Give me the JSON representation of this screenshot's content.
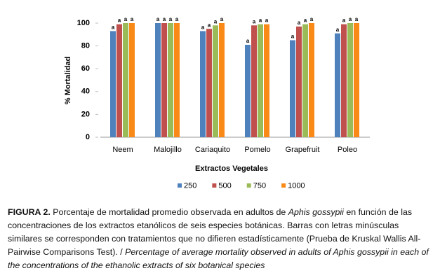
{
  "chart_data": {
    "type": "bar",
    "y_label": "% Mortalidad",
    "x_label": "Extractos Vegetales",
    "categories": [
      "Neem",
      "Malojillo",
      "Cariaquito",
      "Pomelo",
      "Grapefruit",
      "Poleo"
    ],
    "series": [
      {
        "name": "250",
        "color": "#4f81bd",
        "values": [
          93,
          100,
          93,
          81,
          85,
          91
        ],
        "letters": [
          "a",
          "a",
          "a",
          "a",
          "a",
          "a"
        ]
      },
      {
        "name": "500",
        "color": "#c0504d",
        "values": [
          99,
          100,
          95,
          98,
          97,
          99
        ],
        "letters": [
          "a",
          "a",
          "a",
          "a",
          "a",
          "a"
        ]
      },
      {
        "name": "750",
        "color": "#9bbb59",
        "values": [
          100,
          100,
          98,
          99,
          99,
          100
        ],
        "letters": [
          "a",
          "a",
          "a",
          "a",
          "a",
          "a"
        ]
      },
      {
        "name": "1000",
        "color": "#f98a18",
        "values": [
          100,
          100,
          100,
          99,
          100,
          100
        ],
        "letters": [
          "a",
          "a",
          "a",
          "a",
          "a",
          "a"
        ]
      }
    ],
    "ylim": [
      0,
      100
    ],
    "yticks": [
      0,
      20,
      40,
      60,
      80,
      100
    ],
    "grid": false,
    "legend": "bottom"
  },
  "caption": [
    {
      "text": "FIGURA 2.",
      "style": "bold"
    },
    {
      "text": " Porcentaje de mortalidad promedio observada en adultos de ",
      "style": "normal"
    },
    {
      "text": "Aphis gossypii",
      "style": "italic"
    },
    {
      "text": " en función de las concentraciones de los extractos etanólicos de seis especies botánicas. Barras con letras minúsculas similares se corresponden con tratamientos que no difieren estadísticamente (Prueba de Kruskal Wallis All-Pairwise Comparisons Test). / ",
      "style": "normal"
    },
    {
      "text": "Percentage of average mortality observed in adults of Aphis gossypii in each of the concentrations of the ethanolic extracts of six botanical species",
      "style": "italic"
    }
  ]
}
